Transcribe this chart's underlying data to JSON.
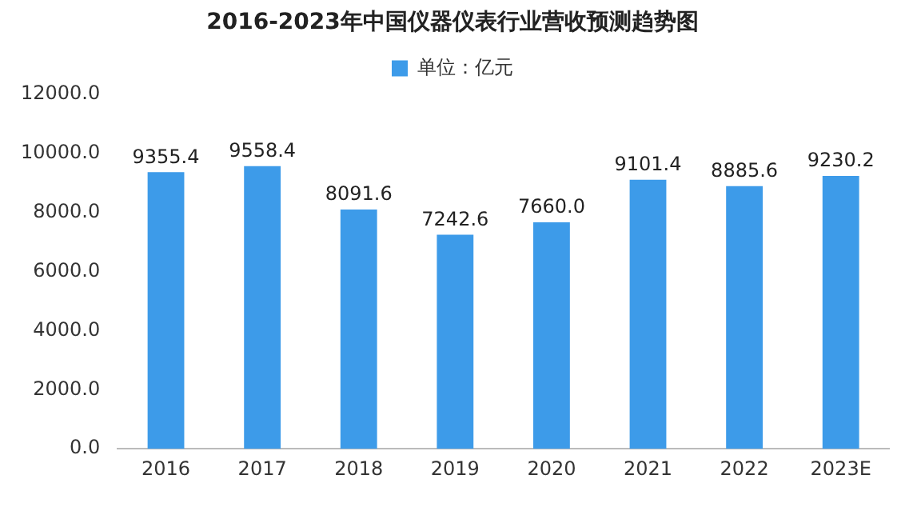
{
  "chart_data": {
    "type": "bar",
    "title": "2016-2023年中国仪器仪表行业营收预测趋势图",
    "categories": [
      "2016",
      "2017",
      "2018",
      "2019",
      "2020",
      "2021",
      "2022",
      "2023E"
    ],
    "series": [
      {
        "name": "单位：亿元",
        "color": "#3d9be9",
        "values": [
          9355.4,
          9558.4,
          8091.6,
          7242.6,
          7660.0,
          9101.4,
          8885.6,
          9230.2
        ]
      }
    ],
    "value_labels": [
      "9355.4",
      "9558.4",
      "8091.6",
      "7242.6",
      "7660.0",
      "9101.4",
      "8885.6",
      "9230.2"
    ],
    "ylim": [
      0,
      12000
    ],
    "yticks": [
      {
        "value": 0,
        "label": "0.0"
      },
      {
        "value": 2000,
        "label": "2000.0"
      },
      {
        "value": 4000,
        "label": "4000.0"
      },
      {
        "value": 6000,
        "label": "6000.0"
      },
      {
        "value": 8000,
        "label": "8000.0"
      },
      {
        "value": 10000,
        "label": "10000.0"
      },
      {
        "value": 12000,
        "label": "12000.0"
      }
    ],
    "grid": false,
    "legend": "top"
  }
}
